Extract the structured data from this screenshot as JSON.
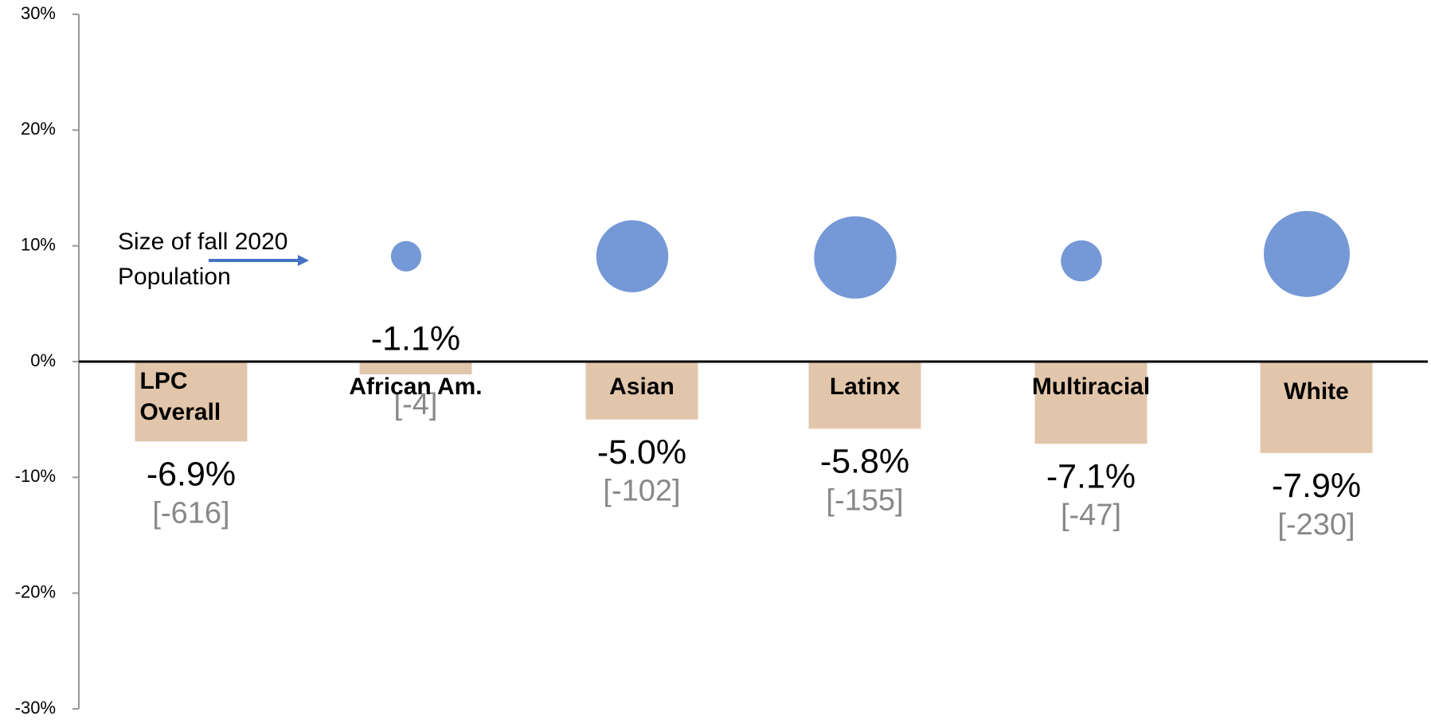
{
  "chart_data": {
    "type": "bar",
    "categories": [
      "LPC Overall",
      "African Am.",
      "Asian",
      "Latinx",
      "Multiracial",
      "White"
    ],
    "values": [
      -6.9,
      -1.1,
      -5.0,
      -5.8,
      -7.1,
      -7.9
    ],
    "value_labels": [
      "-6.9%",
      "-1.1%",
      "-5.0%",
      "-5.8%",
      "-7.1%",
      "-7.9%"
    ],
    "count_labels": [
      "[-616]",
      "[-4]",
      "[-102]",
      "[-155]",
      "[-47]",
      "[-230]"
    ],
    "color": "#e2c6ab",
    "bubbles": {
      "color": "#7598d6",
      "y": [
        null,
        9.1,
        9.1,
        9.0,
        8.7,
        9.3
      ],
      "size": [
        null,
        364,
        2040,
        2672,
        662,
        2911
      ]
    },
    "annotation": "Size of fall 2020 Population",
    "ylim": [
      -30,
      30
    ],
    "yticks": [
      {
        "value": 30,
        "label": "30%"
      },
      {
        "value": 20,
        "label": "20%"
      },
      {
        "value": 10,
        "label": "10%"
      },
      {
        "value": 0,
        "label": "0%"
      },
      {
        "value": -10,
        "label": "-10%"
      },
      {
        "value": -20,
        "label": "-20%"
      },
      {
        "value": -30,
        "label": "-30%"
      }
    ]
  }
}
